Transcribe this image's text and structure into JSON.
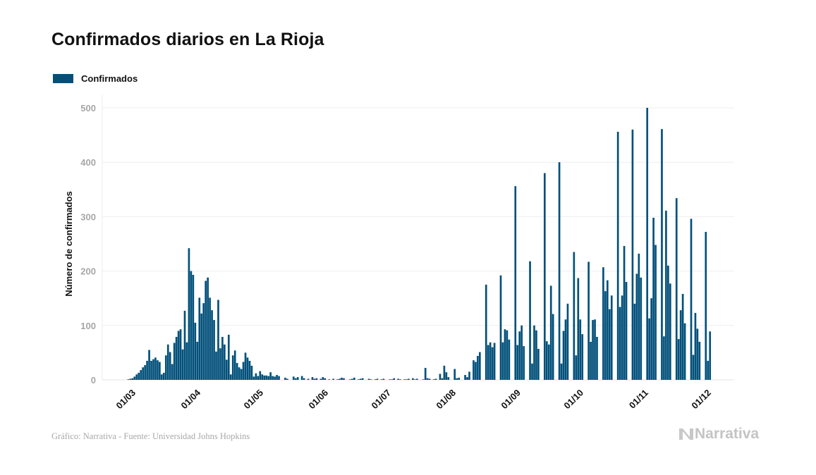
{
  "chart_data": {
    "type": "bar",
    "title": "Confirmados diarios en La Rioja",
    "xlabel": "",
    "ylabel": "Número de confirmados",
    "ylim": [
      0,
      500
    ],
    "yticks": [
      0,
      100,
      200,
      300,
      400,
      500
    ],
    "grid": true,
    "legend": {
      "position": "top-left",
      "entries": [
        "Confirmados"
      ]
    },
    "series": [
      {
        "name": "Confirmados",
        "color": "#02507a",
        "start_date": "2020-02-27",
        "values": [
          0,
          0,
          1,
          2,
          3,
          6,
          10,
          13,
          18,
          23,
          27,
          35,
          55,
          35,
          38,
          41,
          36,
          33,
          10,
          13,
          45,
          65,
          51,
          29,
          68,
          79,
          90,
          93,
          56,
          127,
          69,
          242,
          200,
          193,
          105,
          70,
          151,
          122,
          141,
          182,
          188,
          151,
          128,
          110,
          52,
          147,
          58,
          79,
          65,
          37,
          83,
          10,
          45,
          54,
          31,
          23,
          20,
          33,
          50,
          41,
          35,
          26,
          6,
          12,
          7,
          16,
          10,
          8,
          8,
          7,
          14,
          7,
          6,
          9,
          7,
          0,
          0,
          4,
          2,
          0,
          0,
          6,
          3,
          5,
          0,
          7,
          3,
          0,
          2,
          0,
          5,
          2,
          3,
          0,
          2,
          5,
          3,
          0,
          1,
          0,
          2,
          0,
          1,
          2,
          4,
          3,
          0,
          0,
          1,
          2,
          4,
          0,
          1,
          2,
          3,
          0,
          0,
          2,
          1,
          0,
          1,
          2,
          0,
          1,
          2,
          0,
          0,
          1,
          1,
          3,
          0,
          2,
          1,
          0,
          1,
          1,
          2,
          0,
          3,
          1,
          2,
          0,
          0,
          1,
          22,
          3,
          2,
          0,
          1,
          2,
          0,
          11,
          3,
          26,
          14,
          5,
          0,
          0,
          20,
          3,
          4,
          0,
          0,
          9,
          5,
          15,
          0,
          36,
          33,
          44,
          51,
          0,
          0,
          175,
          64,
          69,
          60,
          68,
          0,
          0,
          192,
          69,
          93,
          91,
          74,
          0,
          0,
          356,
          64,
          89,
          100,
          62,
          0,
          0,
          218,
          30,
          100,
          91,
          57,
          0,
          0,
          380,
          71,
          65,
          173,
          121,
          0,
          0,
          400,
          30,
          90,
          111,
          140,
          0,
          0,
          235,
          45,
          187,
          111,
          84,
          0,
          0,
          217,
          70,
          110,
          111,
          79,
          0,
          0,
          207,
          163,
          183,
          130,
          155,
          0,
          0,
          456,
          134,
          155,
          246,
          180,
          0,
          0,
          460,
          140,
          195,
          232,
          188,
          0,
          0,
          500,
          113,
          150,
          298,
          248,
          0,
          0,
          461,
          80,
          311,
          210,
          177,
          0,
          0,
          334,
          75,
          128,
          158,
          104,
          0,
          0,
          296,
          46,
          123,
          94,
          70,
          0,
          0,
          272,
          35,
          89
        ]
      }
    ],
    "x_ticks": [
      "01/03",
      "01/04",
      "01/05",
      "01/06",
      "01/07",
      "01/08",
      "01/09",
      "01/10",
      "01/11",
      "01/12"
    ],
    "x_tick_dates": [
      "2020-03-01",
      "2020-04-01",
      "2020-05-01",
      "2020-06-01",
      "2020-07-01",
      "2020-08-01",
      "2020-09-01",
      "2020-10-01",
      "2020-11-01",
      "2020-12-01"
    ]
  },
  "legend": {
    "label": "Confirmados",
    "color": "#02507a"
  },
  "footer": {
    "source": "Gráfico: Narrativa - Fuente: Universidad Johns Hopkins",
    "brand": "Narrativa"
  }
}
